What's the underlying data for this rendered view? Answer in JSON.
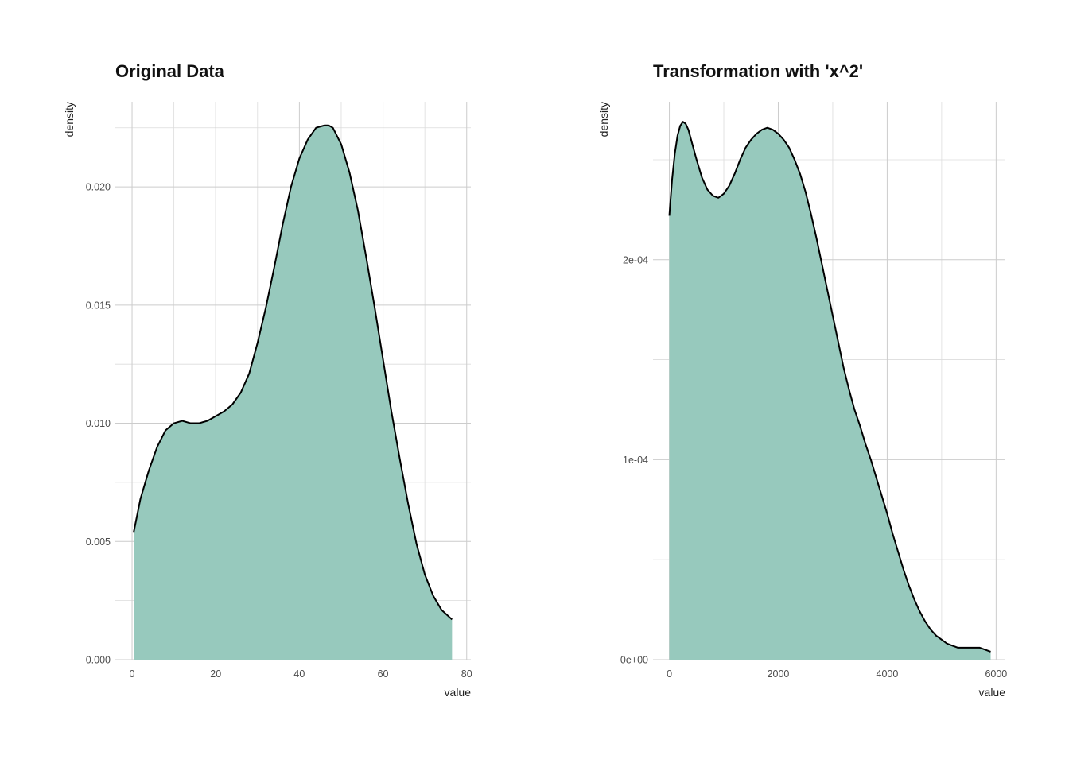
{
  "chart_data": [
    {
      "type": "area",
      "title": "Original Data",
      "xlabel": "value",
      "ylabel": "density",
      "xlim": [
        -4,
        81
      ],
      "ylim": [
        0,
        0.0236
      ],
      "x_ticks": [
        0,
        20,
        40,
        60,
        80
      ],
      "x_tick_labels": [
        "0",
        "20",
        "40",
        "60",
        "80"
      ],
      "y_ticks": [
        0.0,
        0.005,
        0.01,
        0.015,
        0.02
      ],
      "y_tick_labels": [
        "0.000",
        "0.005",
        "0.010",
        "0.015",
        "0.020"
      ],
      "fill_color": "#97c9bd",
      "line_color": "#000000",
      "grid": true,
      "series": [
        {
          "x": [
            0.4,
            2,
            4,
            6,
            8,
            10,
            12,
            14,
            16,
            18,
            20,
            22,
            24,
            26,
            28,
            30,
            32,
            34,
            36,
            38,
            40,
            42,
            44,
            46,
            47,
            48,
            50,
            52,
            54,
            56,
            58,
            60,
            62,
            64,
            66,
            68,
            70,
            72,
            74,
            76.5
          ],
          "y": [
            0.0054,
            0.0068,
            0.008,
            0.009,
            0.0097,
            0.01,
            0.0101,
            0.01,
            0.01,
            0.0101,
            0.0103,
            0.0105,
            0.0108,
            0.0113,
            0.0121,
            0.0134,
            0.0149,
            0.0166,
            0.0184,
            0.02,
            0.0212,
            0.022,
            0.0225,
            0.0226,
            0.0226,
            0.0225,
            0.0218,
            0.0206,
            0.019,
            0.017,
            0.0149,
            0.0127,
            0.0105,
            0.0085,
            0.0066,
            0.0049,
            0.0036,
            0.0027,
            0.0021,
            0.0017
          ]
        }
      ]
    },
    {
      "type": "area",
      "title": "Transformation with 'x^2'",
      "xlabel": "value",
      "ylabel": "density",
      "xlim": [
        -300,
        6170
      ],
      "ylim": [
        0,
        0.000279
      ],
      "x_ticks": [
        0,
        2000,
        4000,
        6000
      ],
      "x_tick_labels": [
        "0",
        "2000",
        "4000",
        "6000"
      ],
      "y_ticks": [
        0,
        0.0001,
        0.0002
      ],
      "y_tick_labels": [
        "0e+00",
        "1e-04",
        "2e-04"
      ],
      "fill_color": "#97c9bd",
      "line_color": "#000000",
      "grid": true,
      "series": [
        {
          "x": [
            0,
            50,
            100,
            150,
            200,
            250,
            300,
            350,
            400,
            500,
            600,
            700,
            800,
            900,
            950,
            1000,
            1100,
            1200,
            1300,
            1400,
            1500,
            1600,
            1700,
            1800,
            1900,
            2000,
            2100,
            2200,
            2300,
            2400,
            2500,
            2600,
            2700,
            2800,
            2900,
            3000,
            3100,
            3200,
            3300,
            3400,
            3500,
            3600,
            3700,
            3800,
            3900,
            4000,
            4100,
            4200,
            4300,
            4400,
            4500,
            4600,
            4700,
            4800,
            4900,
            5000,
            5100,
            5200,
            5300,
            5400,
            5500,
            5600,
            5700,
            5800,
            5900
          ],
          "y": [
            0.000222,
            0.00024,
            0.000253,
            0.000262,
            0.000267,
            0.000269,
            0.000268,
            0.000265,
            0.00026,
            0.00025,
            0.000241,
            0.000235,
            0.000232,
            0.000231,
            0.000232,
            0.000233,
            0.000237,
            0.000243,
            0.00025,
            0.000256,
            0.00026,
            0.000263,
            0.000265,
            0.000266,
            0.000265,
            0.000263,
            0.00026,
            0.000256,
            0.00025,
            0.000243,
            0.000234,
            0.000223,
            0.000211,
            0.000198,
            0.000185,
            0.000172,
            0.000159,
            0.000146,
            0.000135,
            0.000125,
            0.000117,
            0.000108,
            0.0001,
            9.1e-05,
            8.2e-05,
            7.3e-05,
            6.3e-05,
            5.4e-05,
            4.5e-05,
            3.7e-05,
            3e-05,
            2.4e-05,
            1.9e-05,
            1.5e-05,
            1.2e-05,
            1e-05,
            8e-06,
            7e-06,
            6e-06,
            6e-06,
            6e-06,
            6e-06,
            6e-06,
            5e-06,
            4e-06
          ]
        }
      ]
    }
  ]
}
